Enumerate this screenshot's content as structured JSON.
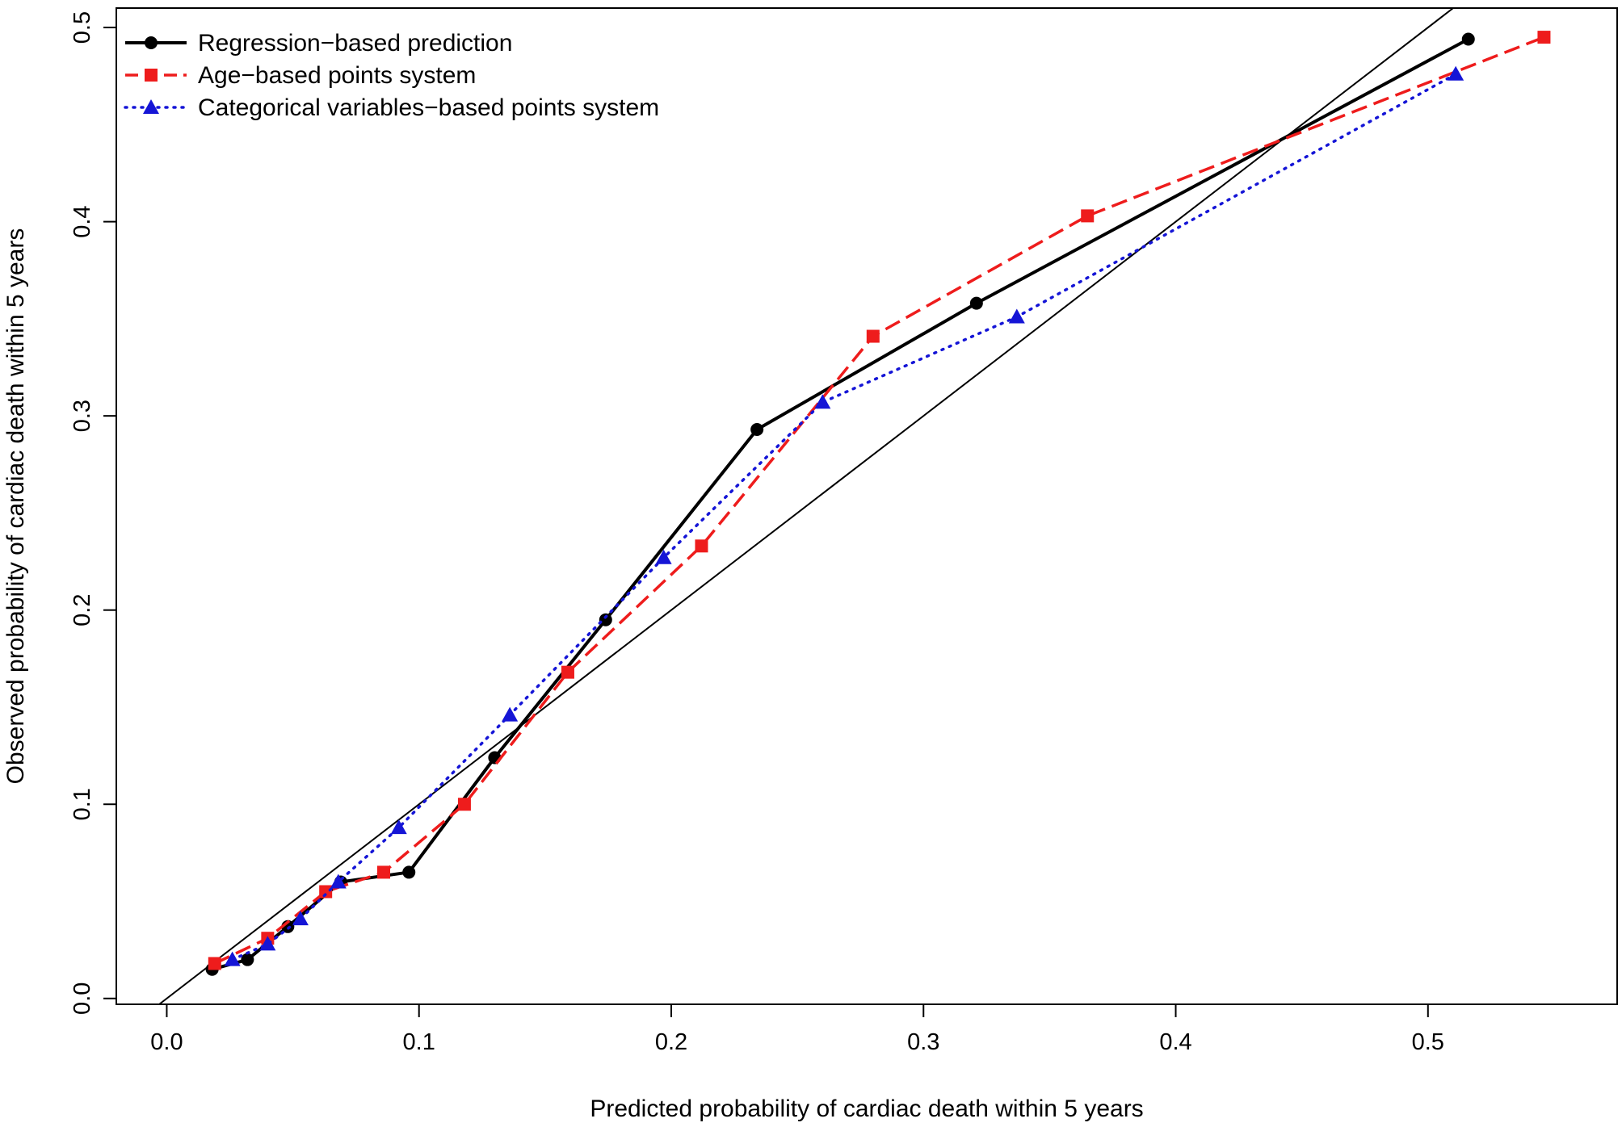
{
  "chart_data": {
    "type": "line",
    "xlabel": "Predicted probability of cardiac death within 5 years",
    "ylabel": "Observed probability of cardiac death within 5 years",
    "xlim": [
      -0.02,
      0.575
    ],
    "ylim": [
      -0.003,
      0.51
    ],
    "x_ticks": [
      0.0,
      0.1,
      0.2,
      0.3,
      0.4,
      0.5
    ],
    "y_ticks": [
      0.0,
      0.1,
      0.2,
      0.3,
      0.4,
      0.5
    ],
    "x_tick_labels": [
      "0.0",
      "0.1",
      "0.2",
      "0.3",
      "0.4",
      "0.5"
    ],
    "y_tick_labels": [
      "0.0",
      "0.1",
      "0.2",
      "0.3",
      "0.4",
      "0.5"
    ],
    "reference_line": "y = x",
    "legend_position": "top-left",
    "grid": false,
    "series": [
      {
        "name": "Regression−based prediction",
        "color": "#000000",
        "line_style": "solid",
        "marker": "circle",
        "x": [
          0.018,
          0.032,
          0.048,
          0.069,
          0.096,
          0.13,
          0.174,
          0.234,
          0.321,
          0.516
        ],
        "y": [
          0.015,
          0.02,
          0.037,
          0.06,
          0.065,
          0.124,
          0.195,
          0.293,
          0.358,
          0.494
        ]
      },
      {
        "name": "Age−based points system",
        "color": "#ee1c1c",
        "line_style": "dashed",
        "marker": "square",
        "x": [
          0.019,
          0.04,
          0.063,
          0.086,
          0.118,
          0.159,
          0.212,
          0.28,
          0.365,
          0.546
        ],
        "y": [
          0.018,
          0.031,
          0.055,
          0.065,
          0.1,
          0.168,
          0.233,
          0.341,
          0.403,
          0.495
        ]
      },
      {
        "name": "Categorical variables−based points system",
        "color": "#1515d6",
        "line_style": "dotted",
        "marker": "triangle",
        "x": [
          0.026,
          0.04,
          0.053,
          0.068,
          0.092,
          0.136,
          0.197,
          0.26,
          0.337,
          0.511
        ],
        "y": [
          0.02,
          0.028,
          0.041,
          0.06,
          0.088,
          0.146,
          0.227,
          0.307,
          0.351,
          0.476
        ]
      }
    ]
  }
}
